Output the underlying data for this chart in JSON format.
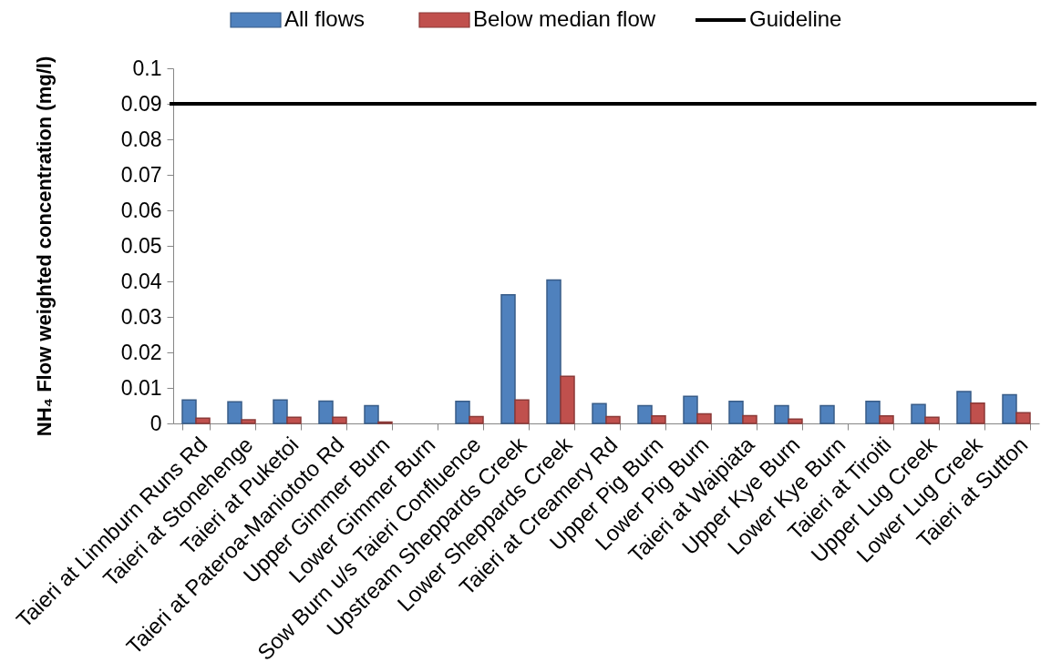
{
  "chart_data": {
    "type": "bar",
    "categories": [
      "Taieri at Linnburn Runs Rd",
      "Taieri at Stonehenge",
      "Taieri at Puketoi",
      "Taieri at Pateroa-Maniototo Rd",
      "Upper Gimmer Burn",
      "Lower Gimmer Burn",
      "Sow Burn u/s Taieri Confluence",
      "Upstream Sheppards Creek",
      "Lower Sheppards Creek",
      "Taieri at Creamery Rd",
      "Upper Pig Burn",
      "Lower Pig Burn",
      "Taieri at Waipiata",
      "Upper Kye Burn",
      "Lower Kye Burn",
      "Taieri at Tiroiti",
      "Upper Lug Creek",
      "Lower Lug Creek",
      "Taieri at Sutton"
    ],
    "series": [
      {
        "name": "All flows",
        "color": "#4f81bd",
        "values": [
          0.0066,
          0.0061,
          0.0066,
          0.0063,
          0.005,
          null,
          0.0062,
          0.0362,
          0.0404,
          0.0056,
          0.005,
          0.0076,
          0.0062,
          0.005,
          0.005,
          0.0062,
          0.0053,
          0.009,
          0.0081
        ]
      },
      {
        "name": "Below median flow",
        "color": "#c0504d",
        "values": [
          0.0015,
          0.001,
          0.0017,
          0.0017,
          0.0004,
          null,
          0.0019,
          0.0066,
          0.0133,
          0.0019,
          0.0021,
          0.0027,
          0.0022,
          0.0012,
          null,
          0.0021,
          0.0017,
          0.0057,
          0.003
        ]
      }
    ],
    "ylabel": "NH₄ Flow weighted concentration (mg/l)",
    "ylim": [
      0,
      0.1
    ],
    "yticks": [
      0,
      0.01,
      0.02,
      0.03,
      0.04,
      0.05,
      0.06,
      0.07,
      0.08,
      0.09,
      0.1
    ],
    "ref_lines": [
      {
        "axis": "y",
        "value": 0.09,
        "label": "Guideline",
        "color": "#000000"
      }
    ],
    "legend": "top",
    "grid": false
  }
}
